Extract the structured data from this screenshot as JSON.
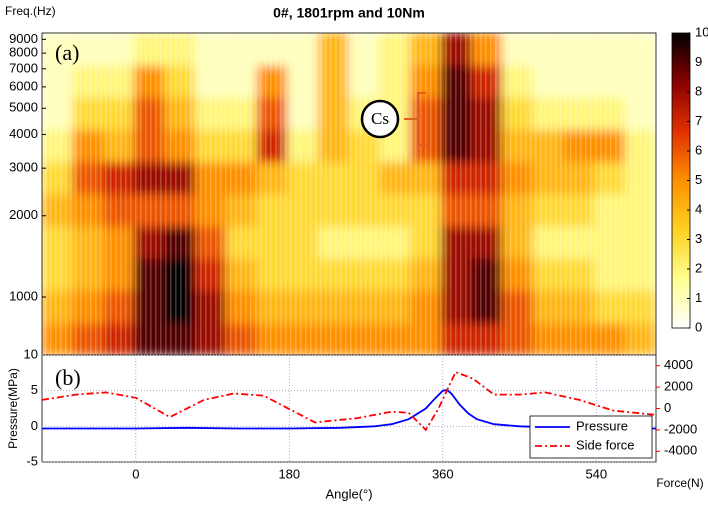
{
  "chart_data": [
    {
      "type": "heatmap",
      "title": "0#, 1801rpm and 10Nm",
      "y_label": "Freq.(Hz)",
      "xlim": [
        -110,
        610
      ],
      "ylim": [
        610,
        9500
      ],
      "log_y": true,
      "yticks": [
        1000,
        2000,
        3000,
        4000,
        5000,
        6000,
        7000,
        8000,
        9000
      ],
      "x_edges": [
        -110,
        -74,
        -38,
        -2,
        34,
        70,
        106,
        142,
        178,
        214,
        250,
        286,
        322,
        358,
        394,
        430,
        466,
        502,
        538,
        574,
        610
      ],
      "y_edges": [
        610,
        800,
        1060,
        1390,
        1830,
        2410,
        3170,
        4170,
        5490,
        7220,
        9500
      ],
      "z": [
        [
          5,
          6,
          7,
          9,
          9,
          8,
          6,
          5,
          5,
          5,
          5,
          5,
          5,
          7,
          7,
          6,
          5,
          5,
          5,
          4
        ],
        [
          4,
          5,
          6,
          9,
          10,
          8,
          5,
          4,
          4,
          4,
          4,
          4,
          5,
          8,
          9,
          6,
          4,
          4,
          3,
          3
        ],
        [
          3,
          4,
          5,
          9,
          10,
          7,
          4,
          3,
          3,
          3,
          3,
          3,
          4,
          8,
          9,
          5,
          3,
          3,
          2,
          2
        ],
        [
          3,
          4,
          5,
          8,
          9,
          6,
          3,
          3,
          3,
          2,
          2,
          2,
          3,
          8,
          8,
          4,
          2,
          2,
          2,
          2
        ],
        [
          4,
          5,
          6,
          6,
          6,
          5,
          4,
          3,
          3,
          3,
          3,
          3,
          3,
          6,
          6,
          4,
          3,
          3,
          2,
          2
        ],
        [
          3,
          6,
          7,
          8,
          8,
          5,
          5,
          4,
          3,
          3,
          3,
          4,
          4,
          7,
          7,
          5,
          4,
          4,
          3,
          2
        ],
        [
          2,
          5,
          4,
          6,
          5,
          3,
          3,
          7,
          2,
          4,
          3,
          2,
          6,
          9,
          8,
          4,
          4,
          5,
          5,
          2
        ],
        [
          1,
          3,
          3,
          6,
          4,
          2,
          2,
          6,
          1,
          4,
          2,
          2,
          6,
          9,
          8,
          3,
          2,
          2,
          2,
          1
        ],
        [
          1,
          2,
          2,
          5,
          3,
          1,
          1,
          5,
          1,
          4,
          1,
          2,
          5,
          9,
          7,
          2,
          1,
          1,
          1,
          1
        ],
        [
          1,
          1,
          1,
          2,
          2,
          1,
          1,
          1,
          1,
          4,
          1,
          2,
          4,
          8,
          5,
          1,
          1,
          1,
          1,
          1
        ]
      ],
      "zlim": [
        0,
        10
      ],
      "zticks": [
        0,
        1,
        2,
        3,
        4,
        5,
        6,
        7,
        8,
        9,
        10
      ],
      "colormap": [
        "#ffffff",
        "#ffff90",
        "#ffd020",
        "#ff9000",
        "#e03000",
        "#8a0000",
        "#000000"
      ],
      "annotations": [
        "(a)",
        "Cs"
      ]
    },
    {
      "type": "line",
      "x_label": "Angle(°)",
      "y_label": "Pressure(MPa)",
      "y2_label": "Force(N)",
      "xlim": [
        -110,
        610
      ],
      "xticks": [
        0,
        180,
        360,
        540
      ],
      "ylim": [
        -5,
        10
      ],
      "yticks": [
        -5,
        0,
        5,
        10
      ],
      "y2lim": [
        -5000,
        5000
      ],
      "y2ticks": [
        -4000,
        -2000,
        0,
        2000,
        4000
      ],
      "grid": true,
      "legend": "lower right",
      "annotations": [
        "(b)"
      ],
      "series": [
        {
          "name": "Pressure",
          "color": "#0000ff",
          "dash": "solid",
          "x": [
            -110,
            -60,
            0,
            60,
            120,
            180,
            240,
            280,
            300,
            320,
            340,
            350,
            360,
            365,
            370,
            380,
            390,
            400,
            420,
            450,
            500,
            550,
            610
          ],
          "values": [
            -0.3,
            -0.3,
            -0.3,
            -0.2,
            -0.3,
            -0.3,
            -0.2,
            0,
            0.3,
            1,
            2.5,
            3.8,
            5,
            5.1,
            4.6,
            3,
            1.8,
            1,
            0.3,
            0,
            -0.2,
            -0.3,
            -0.3
          ]
        },
        {
          "name": "Side force",
          "color": "#ff0000",
          "dash": "dashdot",
          "axis": "y2",
          "x": [
            -110,
            -70,
            -35,
            0,
            40,
            80,
            115,
            150,
            210,
            260,
            300,
            320,
            340,
            355,
            375,
            395,
            420,
            450,
            480,
            520,
            560,
            610
          ],
          "values": [
            800,
            1300,
            1500,
            1000,
            -800,
            800,
            1400,
            1200,
            -1300,
            -900,
            -300,
            -400,
            -2000,
            0,
            3400,
            2800,
            1300,
            1300,
            1500,
            800,
            -200,
            -600
          ]
        }
      ]
    }
  ]
}
